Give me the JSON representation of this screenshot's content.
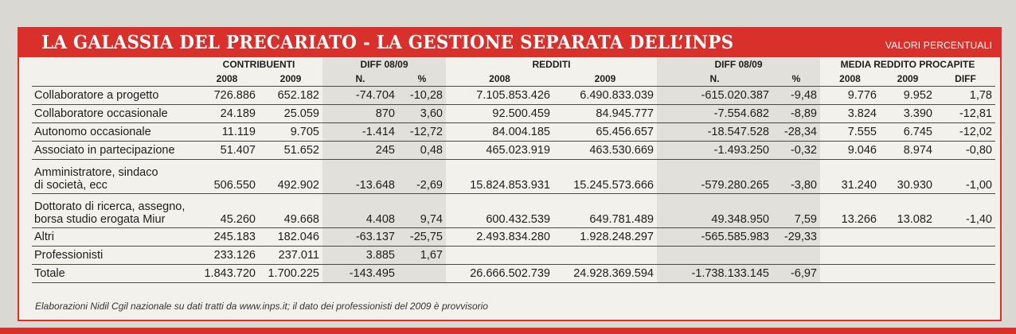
{
  "title": "LA GALASSIA DEL PRECARIATO - LA GESTIONE SEPARATA DELL’INPS",
  "subtitle": "VALORI PERCENTUALI",
  "groups": {
    "contributi": "CONTRIBUENTI",
    "diff1": "DIFF 08/09",
    "redditi": "REDDITI",
    "diff2": "DIFF 08/09",
    "media": "MEDIA REDDITO PROCAPITE"
  },
  "columns": [
    "2008",
    "2009",
    "N.",
    "%",
    "2008",
    "2009",
    "N.",
    "%",
    "2008",
    "2009",
    "DIFF"
  ],
  "rows": [
    {
      "label": "Collaboratore a progetto",
      "values": [
        "726.886",
        "652.182",
        "-74.704",
        "-10,28",
        "7.105.853.426",
        "6.490.833.039",
        "-615.020.387",
        "-9,48",
        "9.776",
        "9.952",
        "1,78"
      ]
    },
    {
      "label": "Collaboratore occasionale",
      "values": [
        "24.189",
        "25.059",
        "870",
        "3,60",
        "92.500.459",
        "84.945.777",
        "-7.554.682",
        "-8,89",
        "3.824",
        "3.390",
        "-12,81"
      ]
    },
    {
      "label": "Autonomo occasionale",
      "values": [
        "11.119",
        "9.705",
        "-1.414",
        "-12,72",
        "84.004.185",
        "65.456.657",
        "-18.547.528",
        "-28,34",
        "7.555",
        "6.745",
        "-12,02"
      ]
    },
    {
      "label": "Associato in partecipazione",
      "values": [
        "51.407",
        "51.652",
        "245",
        "0,48",
        "465.023.919",
        "463.530.669",
        "-1.493.250",
        "-0,32",
        "9.046",
        "8.974",
        "-0,80"
      ]
    },
    {
      "label": "Amministratore, sindaco",
      "label2": "di società, ecc",
      "values": [
        "506.550",
        "492.902",
        "-13.648",
        "-2,69",
        "15.824.853.931",
        "15.245.573.666",
        "-579.280.265",
        "-3,80",
        "31.240",
        "30.930",
        "-1,00"
      ]
    },
    {
      "label": "Dottorato di ricerca, assegno,",
      "label2": "borsa studio erogata Miur",
      "values": [
        "45.260",
        "49.668",
        "4.408",
        "9,74",
        "600.432.539",
        "649.781.489",
        "49.348.950",
        "7,59",
        "13.266",
        "13.082",
        "-1,40"
      ]
    },
    {
      "label": "Altri",
      "values": [
        "245.183",
        "182.046",
        "-63.137",
        "-25,75",
        "2.493.834.280",
        "1.928.248.297",
        "-565.585.983",
        "-29,33",
        "",
        "",
        ""
      ]
    },
    {
      "label": "Professionisti",
      "values": [
        "233.126",
        "237.011",
        "3.885",
        "1,67",
        "",
        "",
        "",
        "",
        "",
        "",
        ""
      ]
    },
    {
      "label": "Totale",
      "values": [
        "1.843.720",
        "1.700.225",
        "-143.495",
        "",
        "26.666.502.739",
        "24.928.369.594",
        "-1.738.133.145",
        "-6,97",
        "",
        "",
        ""
      ]
    }
  ],
  "note": "Elaborazioni Nidil Cgil nazionale su dati tratti da www.inps.it; il dato dei professionisti del 2009 è provvisorio",
  "colors": {
    "accent": "#d9302b",
    "paper": "#f2f1ec",
    "shade": "#e2e0da"
  }
}
